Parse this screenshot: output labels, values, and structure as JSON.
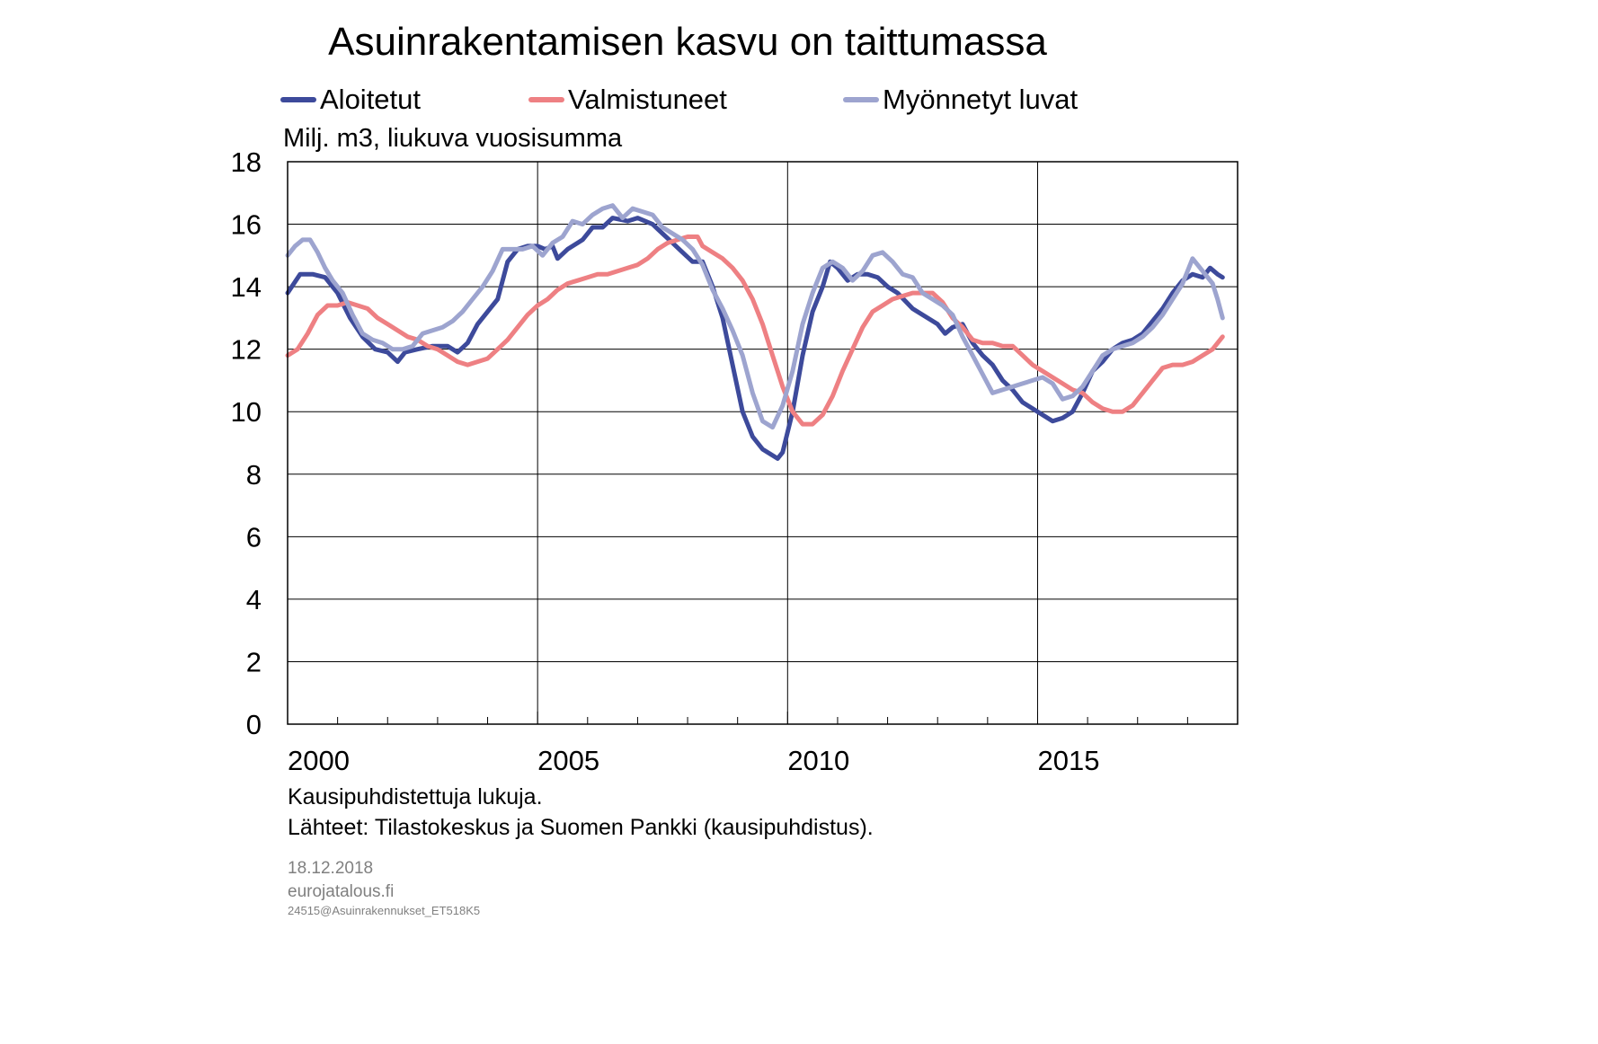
{
  "title": "Asuinrakentamisen kasvu on taittumassa",
  "unit_label": "Milj. m3, liukuva vuosisumma",
  "notes": {
    "seasonal": "Kausipuhdistettuja  lukuja.",
    "sources": "Lähteet:  Tilastokeskus  ja  Suomen  Pankki  (kausipuhdistus)."
  },
  "footer": {
    "date": "18.12.2018",
    "site": "eurojatalous.fi",
    "code": "24515@Asuinrakennukset_ET518K5"
  },
  "chart_data": {
    "type": "line",
    "title": "Asuinrakentamisen kasvu on taittumassa",
    "ylabel": "Milj. m3, liukuva vuosisumma",
    "xlabel": "",
    "ylim": [
      0,
      18
    ],
    "yticks": [
      0,
      2,
      4,
      6,
      8,
      10,
      12,
      14,
      16,
      18
    ],
    "xlim": [
      2000,
      2019
    ],
    "xtick_labels": [
      "2000",
      "2005",
      "2010",
      "2015"
    ],
    "grid": true,
    "legend_position": "top",
    "series": [
      {
        "name": "Aloitetut",
        "color": "#3d4a9b",
        "points": [
          [
            2000.0,
            13.8
          ],
          [
            2000.25,
            14.4
          ],
          [
            2000.5,
            14.4
          ],
          [
            2000.75,
            14.3
          ],
          [
            2001.0,
            13.8
          ],
          [
            2001.25,
            13.0
          ],
          [
            2001.5,
            12.4
          ],
          [
            2001.75,
            12.0
          ],
          [
            2002.0,
            11.9
          ],
          [
            2002.2,
            11.6
          ],
          [
            2002.35,
            11.9
          ],
          [
            2002.6,
            12.0
          ],
          [
            2002.9,
            12.1
          ],
          [
            2003.2,
            12.1
          ],
          [
            2003.4,
            11.9
          ],
          [
            2003.6,
            12.2
          ],
          [
            2003.8,
            12.8
          ],
          [
            2004.0,
            13.2
          ],
          [
            2004.2,
            13.6
          ],
          [
            2004.4,
            14.8
          ],
          [
            2004.6,
            15.2
          ],
          [
            2004.8,
            15.3
          ],
          [
            2005.0,
            15.3
          ],
          [
            2005.15,
            15.2
          ],
          [
            2005.3,
            15.3
          ],
          [
            2005.4,
            14.9
          ],
          [
            2005.6,
            15.2
          ],
          [
            2005.9,
            15.5
          ],
          [
            2006.1,
            15.9
          ],
          [
            2006.3,
            15.9
          ],
          [
            2006.5,
            16.2
          ],
          [
            2006.8,
            16.1
          ],
          [
            2007.0,
            16.2
          ],
          [
            2007.3,
            16.0
          ],
          [
            2007.5,
            15.7
          ],
          [
            2007.7,
            15.4
          ],
          [
            2007.9,
            15.1
          ],
          [
            2008.1,
            14.8
          ],
          [
            2008.3,
            14.8
          ],
          [
            2008.5,
            14.0
          ],
          [
            2008.7,
            13.0
          ],
          [
            2008.9,
            11.5
          ],
          [
            2009.1,
            10.0
          ],
          [
            2009.3,
            9.2
          ],
          [
            2009.5,
            8.8
          ],
          [
            2009.7,
            8.6
          ],
          [
            2009.8,
            8.5
          ],
          [
            2009.9,
            8.7
          ],
          [
            2010.1,
            10.0
          ],
          [
            2010.3,
            11.8
          ],
          [
            2010.5,
            13.2
          ],
          [
            2010.7,
            14.0
          ],
          [
            2010.85,
            14.8
          ],
          [
            2011.0,
            14.6
          ],
          [
            2011.2,
            14.2
          ],
          [
            2011.4,
            14.4
          ],
          [
            2011.6,
            14.4
          ],
          [
            2011.8,
            14.3
          ],
          [
            2012.0,
            14.0
          ],
          [
            2012.2,
            13.8
          ],
          [
            2012.5,
            13.3
          ],
          [
            2012.8,
            13.0
          ],
          [
            2013.0,
            12.8
          ],
          [
            2013.15,
            12.5
          ],
          [
            2013.3,
            12.7
          ],
          [
            2013.5,
            12.8
          ],
          [
            2013.7,
            12.2
          ],
          [
            2013.9,
            11.8
          ],
          [
            2014.1,
            11.5
          ],
          [
            2014.3,
            11.0
          ],
          [
            2014.5,
            10.7
          ],
          [
            2014.7,
            10.3
          ],
          [
            2014.9,
            10.1
          ],
          [
            2015.1,
            9.9
          ],
          [
            2015.3,
            9.7
          ],
          [
            2015.5,
            9.8
          ],
          [
            2015.7,
            10.0
          ],
          [
            2015.9,
            10.6
          ],
          [
            2016.1,
            11.3
          ],
          [
            2016.3,
            11.6
          ],
          [
            2016.5,
            12.0
          ],
          [
            2016.7,
            12.2
          ],
          [
            2016.9,
            12.3
          ],
          [
            2017.1,
            12.5
          ],
          [
            2017.3,
            12.9
          ],
          [
            2017.5,
            13.3
          ],
          [
            2017.7,
            13.8
          ],
          [
            2017.9,
            14.2
          ],
          [
            2018.1,
            14.4
          ],
          [
            2018.3,
            14.3
          ],
          [
            2018.45,
            14.6
          ],
          [
            2018.6,
            14.4
          ],
          [
            2018.7,
            14.3
          ]
        ]
      },
      {
        "name": "Valmistuneet",
        "color": "#ee8083",
        "points": [
          [
            2000.0,
            11.8
          ],
          [
            2000.2,
            12.0
          ],
          [
            2000.4,
            12.5
          ],
          [
            2000.6,
            13.1
          ],
          [
            2000.8,
            13.4
          ],
          [
            2001.0,
            13.4
          ],
          [
            2001.2,
            13.5
          ],
          [
            2001.4,
            13.4
          ],
          [
            2001.6,
            13.3
          ],
          [
            2001.8,
            13.0
          ],
          [
            2002.0,
            12.8
          ],
          [
            2002.2,
            12.6
          ],
          [
            2002.4,
            12.4
          ],
          [
            2002.6,
            12.3
          ],
          [
            2002.8,
            12.1
          ],
          [
            2003.0,
            12.0
          ],
          [
            2003.2,
            11.8
          ],
          [
            2003.4,
            11.6
          ],
          [
            2003.6,
            11.5
          ],
          [
            2003.8,
            11.6
          ],
          [
            2004.0,
            11.7
          ],
          [
            2004.2,
            12.0
          ],
          [
            2004.4,
            12.3
          ],
          [
            2004.6,
            12.7
          ],
          [
            2004.8,
            13.1
          ],
          [
            2005.0,
            13.4
          ],
          [
            2005.2,
            13.6
          ],
          [
            2005.4,
            13.9
          ],
          [
            2005.6,
            14.1
          ],
          [
            2005.8,
            14.2
          ],
          [
            2006.0,
            14.3
          ],
          [
            2006.2,
            14.4
          ],
          [
            2006.4,
            14.4
          ],
          [
            2006.6,
            14.5
          ],
          [
            2006.8,
            14.6
          ],
          [
            2007.0,
            14.7
          ],
          [
            2007.2,
            14.9
          ],
          [
            2007.4,
            15.2
          ],
          [
            2007.6,
            15.4
          ],
          [
            2007.8,
            15.5
          ],
          [
            2008.0,
            15.6
          ],
          [
            2008.2,
            15.6
          ],
          [
            2008.3,
            15.3
          ],
          [
            2008.5,
            15.1
          ],
          [
            2008.7,
            14.9
          ],
          [
            2008.9,
            14.6
          ],
          [
            2009.1,
            14.2
          ],
          [
            2009.3,
            13.6
          ],
          [
            2009.5,
            12.8
          ],
          [
            2009.7,
            11.8
          ],
          [
            2009.9,
            10.8
          ],
          [
            2010.1,
            10.0
          ],
          [
            2010.3,
            9.6
          ],
          [
            2010.5,
            9.6
          ],
          [
            2010.7,
            9.9
          ],
          [
            2010.9,
            10.5
          ],
          [
            2011.1,
            11.3
          ],
          [
            2011.3,
            12.0
          ],
          [
            2011.5,
            12.7
          ],
          [
            2011.7,
            13.2
          ],
          [
            2011.9,
            13.4
          ],
          [
            2012.1,
            13.6
          ],
          [
            2012.3,
            13.7
          ],
          [
            2012.5,
            13.8
          ],
          [
            2012.7,
            13.8
          ],
          [
            2012.9,
            13.8
          ],
          [
            2013.1,
            13.5
          ],
          [
            2013.3,
            13.0
          ],
          [
            2013.5,
            12.7
          ],
          [
            2013.7,
            12.3
          ],
          [
            2013.9,
            12.2
          ],
          [
            2014.1,
            12.2
          ],
          [
            2014.3,
            12.1
          ],
          [
            2014.5,
            12.1
          ],
          [
            2014.7,
            11.8
          ],
          [
            2014.9,
            11.5
          ],
          [
            2015.1,
            11.3
          ],
          [
            2015.3,
            11.1
          ],
          [
            2015.5,
            10.9
          ],
          [
            2015.7,
            10.7
          ],
          [
            2015.9,
            10.6
          ],
          [
            2016.1,
            10.3
          ],
          [
            2016.3,
            10.1
          ],
          [
            2016.5,
            10.0
          ],
          [
            2016.7,
            10.0
          ],
          [
            2016.9,
            10.2
          ],
          [
            2017.1,
            10.6
          ],
          [
            2017.3,
            11.0
          ],
          [
            2017.5,
            11.4
          ],
          [
            2017.7,
            11.5
          ],
          [
            2017.9,
            11.5
          ],
          [
            2018.1,
            11.6
          ],
          [
            2018.3,
            11.8
          ],
          [
            2018.5,
            12.0
          ],
          [
            2018.7,
            12.4
          ]
        ]
      },
      {
        "name": "Myönnetyt luvat",
        "color": "#9da4cf",
        "points": [
          [
            2000.0,
            15.0
          ],
          [
            2000.15,
            15.3
          ],
          [
            2000.3,
            15.5
          ],
          [
            2000.45,
            15.5
          ],
          [
            2000.6,
            15.1
          ],
          [
            2000.75,
            14.6
          ],
          [
            2000.9,
            14.2
          ],
          [
            2001.1,
            13.8
          ],
          [
            2001.3,
            13.1
          ],
          [
            2001.5,
            12.5
          ],
          [
            2001.7,
            12.3
          ],
          [
            2001.9,
            12.2
          ],
          [
            2002.1,
            12.0
          ],
          [
            2002.3,
            12.0
          ],
          [
            2002.5,
            12.1
          ],
          [
            2002.7,
            12.5
          ],
          [
            2002.9,
            12.6
          ],
          [
            2003.1,
            12.7
          ],
          [
            2003.3,
            12.9
          ],
          [
            2003.5,
            13.2
          ],
          [
            2003.7,
            13.6
          ],
          [
            2003.9,
            14.0
          ],
          [
            2004.1,
            14.5
          ],
          [
            2004.3,
            15.2
          ],
          [
            2004.5,
            15.2
          ],
          [
            2004.7,
            15.2
          ],
          [
            2004.9,
            15.3
          ],
          [
            2005.1,
            15.0
          ],
          [
            2005.3,
            15.4
          ],
          [
            2005.5,
            15.6
          ],
          [
            2005.7,
            16.1
          ],
          [
            2005.9,
            16.0
          ],
          [
            2006.1,
            16.3
          ],
          [
            2006.3,
            16.5
          ],
          [
            2006.5,
            16.6
          ],
          [
            2006.7,
            16.2
          ],
          [
            2006.9,
            16.5
          ],
          [
            2007.1,
            16.4
          ],
          [
            2007.3,
            16.3
          ],
          [
            2007.5,
            15.9
          ],
          [
            2007.7,
            15.7
          ],
          [
            2007.9,
            15.5
          ],
          [
            2008.1,
            15.2
          ],
          [
            2008.3,
            14.7
          ],
          [
            2008.5,
            13.9
          ],
          [
            2008.7,
            13.3
          ],
          [
            2008.9,
            12.6
          ],
          [
            2009.1,
            11.8
          ],
          [
            2009.3,
            10.6
          ],
          [
            2009.5,
            9.7
          ],
          [
            2009.7,
            9.5
          ],
          [
            2009.9,
            10.2
          ],
          [
            2010.1,
            11.3
          ],
          [
            2010.3,
            12.8
          ],
          [
            2010.5,
            13.8
          ],
          [
            2010.7,
            14.6
          ],
          [
            2010.9,
            14.8
          ],
          [
            2011.1,
            14.6
          ],
          [
            2011.3,
            14.2
          ],
          [
            2011.5,
            14.5
          ],
          [
            2011.7,
            15.0
          ],
          [
            2011.9,
            15.1
          ],
          [
            2012.1,
            14.8
          ],
          [
            2012.3,
            14.4
          ],
          [
            2012.5,
            14.3
          ],
          [
            2012.7,
            13.8
          ],
          [
            2012.9,
            13.6
          ],
          [
            2013.1,
            13.4
          ],
          [
            2013.3,
            13.1
          ],
          [
            2013.5,
            12.4
          ],
          [
            2013.7,
            11.8
          ],
          [
            2013.9,
            11.2
          ],
          [
            2014.1,
            10.6
          ],
          [
            2014.3,
            10.7
          ],
          [
            2014.5,
            10.8
          ],
          [
            2014.7,
            10.9
          ],
          [
            2014.9,
            11.0
          ],
          [
            2015.1,
            11.1
          ],
          [
            2015.3,
            10.9
          ],
          [
            2015.5,
            10.4
          ],
          [
            2015.7,
            10.5
          ],
          [
            2015.9,
            10.8
          ],
          [
            2016.1,
            11.3
          ],
          [
            2016.3,
            11.8
          ],
          [
            2016.5,
            12.0
          ],
          [
            2016.7,
            12.1
          ],
          [
            2016.9,
            12.2
          ],
          [
            2017.1,
            12.4
          ],
          [
            2017.3,
            12.7
          ],
          [
            2017.5,
            13.1
          ],
          [
            2017.7,
            13.6
          ],
          [
            2017.9,
            14.1
          ],
          [
            2018.1,
            14.9
          ],
          [
            2018.3,
            14.5
          ],
          [
            2018.5,
            14.1
          ],
          [
            2018.6,
            13.6
          ],
          [
            2018.7,
            13.0
          ]
        ]
      }
    ]
  }
}
